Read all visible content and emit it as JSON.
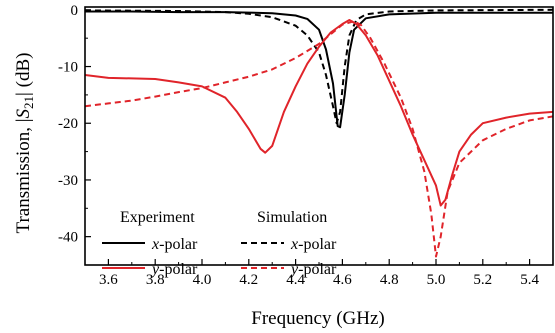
{
  "chart_data": {
    "type": "line",
    "xlabel": "Frequency (GHz)",
    "ylabel_prefix": "Transmission, |",
    "ylabel_sym": "S",
    "ylabel_sub": "21",
    "ylabel_suffix": "| (dB)",
    "xlim": [
      3.5,
      5.5
    ],
    "ylim": [
      -45,
      0.5
    ],
    "x_ticks": [
      "3.6",
      "3.8",
      "4.0",
      "4.2",
      "4.4",
      "4.6",
      "4.8",
      "5.0",
      "5.2",
      "5.4"
    ],
    "y_ticks": [
      "0",
      "-10",
      "-20",
      "-30",
      "-40"
    ],
    "grid": false,
    "legend": {
      "position": "bottom-left",
      "col1_header": "Experiment",
      "col2_header": "Simulation",
      "x_label_italic": "x",
      "y_label_italic": "y",
      "polar_suffix": "-polar"
    },
    "colors": {
      "x": "#000000",
      "y": "#e0242a"
    },
    "series": [
      {
        "group": "Experiment",
        "pol": "x",
        "style": "solid",
        "points": [
          [
            3.5,
            -0.3
          ],
          [
            3.7,
            -0.3
          ],
          [
            3.9,
            -0.4
          ],
          [
            4.1,
            -0.4
          ],
          [
            4.3,
            -0.6
          ],
          [
            4.4,
            -1.0
          ],
          [
            4.45,
            -1.6
          ],
          [
            4.5,
            -3.5
          ],
          [
            4.53,
            -7
          ],
          [
            4.56,
            -13
          ],
          [
            4.58,
            -20.5
          ],
          [
            4.59,
            -20.7
          ],
          [
            4.61,
            -15
          ],
          [
            4.63,
            -7.5
          ],
          [
            4.65,
            -3.5
          ],
          [
            4.7,
            -1.5
          ],
          [
            4.8,
            -0.8
          ],
          [
            5.0,
            -0.5
          ],
          [
            5.2,
            -0.5
          ],
          [
            5.5,
            -0.5
          ]
        ]
      },
      {
        "group": "Simulation",
        "pol": "x",
        "style": "dashed",
        "points": [
          [
            3.5,
            -0.1
          ],
          [
            3.9,
            -0.2
          ],
          [
            4.1,
            -0.4
          ],
          [
            4.2,
            -0.7
          ],
          [
            4.3,
            -1.3
          ],
          [
            4.4,
            -2.8
          ],
          [
            4.45,
            -4.5
          ],
          [
            4.5,
            -7.5
          ],
          [
            4.53,
            -11.5
          ],
          [
            4.56,
            -17
          ],
          [
            4.575,
            -20
          ],
          [
            4.59,
            -18
          ],
          [
            4.61,
            -10
          ],
          [
            4.63,
            -4.5
          ],
          [
            4.66,
            -1.8
          ],
          [
            4.7,
            -0.8
          ],
          [
            4.8,
            -0.3
          ],
          [
            5.0,
            -0.1
          ],
          [
            5.5,
            0
          ]
        ]
      },
      {
        "group": "Experiment",
        "pol": "y",
        "style": "solid",
        "points": [
          [
            3.5,
            -11.5
          ],
          [
            3.6,
            -12
          ],
          [
            3.7,
            -12.1
          ],
          [
            3.8,
            -12.2
          ],
          [
            3.9,
            -12.8
          ],
          [
            4.0,
            -13.5
          ],
          [
            4.1,
            -15.5
          ],
          [
            4.15,
            -18
          ],
          [
            4.2,
            -21
          ],
          [
            4.25,
            -24.5
          ],
          [
            4.27,
            -25.2
          ],
          [
            4.3,
            -24
          ],
          [
            4.35,
            -18
          ],
          [
            4.4,
            -13.5
          ],
          [
            4.45,
            -9.5
          ],
          [
            4.5,
            -6.5
          ],
          [
            4.55,
            -4
          ],
          [
            4.6,
            -2.5
          ],
          [
            4.63,
            -1.8
          ],
          [
            4.66,
            -2.5
          ],
          [
            4.7,
            -4.5
          ],
          [
            4.75,
            -8
          ],
          [
            4.8,
            -12.5
          ],
          [
            4.85,
            -17
          ],
          [
            4.9,
            -22
          ],
          [
            4.95,
            -26.5
          ],
          [
            5.0,
            -31
          ],
          [
            5.02,
            -34.5
          ],
          [
            5.04,
            -33.5
          ],
          [
            5.07,
            -29
          ],
          [
            5.1,
            -25
          ],
          [
            5.15,
            -22
          ],
          [
            5.2,
            -20
          ],
          [
            5.3,
            -19
          ],
          [
            5.4,
            -18.3
          ],
          [
            5.5,
            -18
          ]
        ]
      },
      {
        "group": "Simulation",
        "pol": "y",
        "style": "dashed",
        "points": [
          [
            3.5,
            -17
          ],
          [
            3.6,
            -16.5
          ],
          [
            3.7,
            -16
          ],
          [
            3.8,
            -15.3
          ],
          [
            3.9,
            -14.5
          ],
          [
            4.0,
            -13.8
          ],
          [
            4.1,
            -12.8
          ],
          [
            4.2,
            -11.8
          ],
          [
            4.3,
            -10.5
          ],
          [
            4.4,
            -8.5
          ],
          [
            4.5,
            -6
          ],
          [
            4.55,
            -4.3
          ],
          [
            4.6,
            -2.6
          ],
          [
            4.65,
            -2
          ],
          [
            4.68,
            -2.7
          ],
          [
            4.72,
            -5
          ],
          [
            4.78,
            -9.5
          ],
          [
            4.85,
            -15.5
          ],
          [
            4.9,
            -21
          ],
          [
            4.95,
            -28.5
          ],
          [
            4.98,
            -36
          ],
          [
            5.0,
            -43.5
          ],
          [
            5.02,
            -40
          ],
          [
            5.05,
            -32
          ],
          [
            5.1,
            -27
          ],
          [
            5.2,
            -23
          ],
          [
            5.3,
            -21
          ],
          [
            5.4,
            -19.5
          ],
          [
            5.5,
            -18.8
          ]
        ]
      }
    ]
  }
}
